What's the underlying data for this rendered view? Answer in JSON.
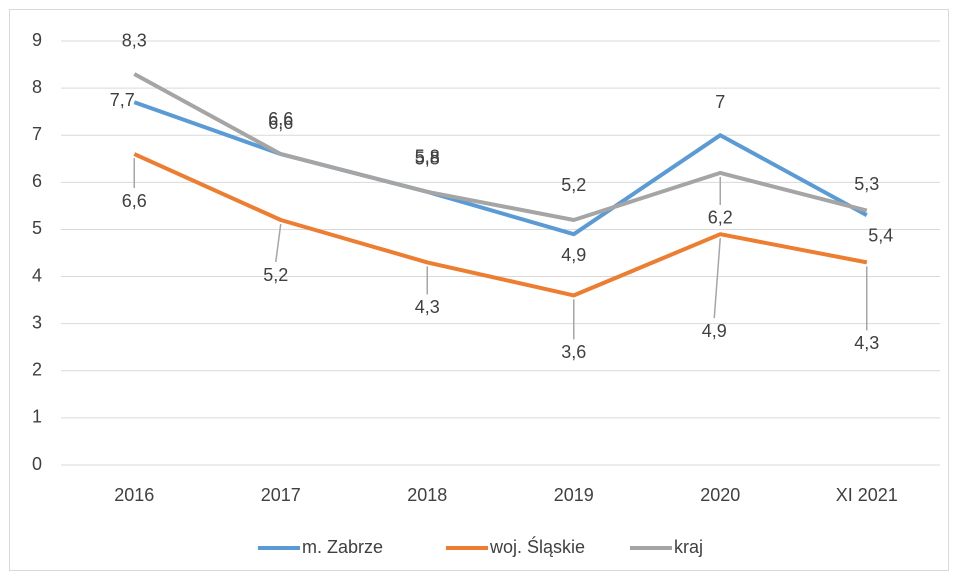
{
  "chart_data": {
    "type": "line",
    "categories": [
      "2016",
      "2017",
      "2018",
      "2019",
      "2020",
      "XI 2021"
    ],
    "series": [
      {
        "name": "m. Zabrze",
        "color": "#5b9bd5",
        "values": [
          7.7,
          6.6,
          5.8,
          4.9,
          7,
          5.3
        ],
        "value_labels": [
          "7,7",
          "6,6",
          "5,8",
          "4,9",
          "7",
          "5,3"
        ]
      },
      {
        "name": "woj. Śląskie",
        "color": "#ed7d31",
        "values": [
          6.6,
          5.2,
          4.3,
          3.6,
          4.9,
          4.3
        ],
        "value_labels": [
          "6,6",
          "5,2",
          "4,3",
          "3,6",
          "4,9",
          "4,3"
        ]
      },
      {
        "name": "kraj",
        "color": "#a5a5a5",
        "values": [
          8.3,
          6.6,
          5.8,
          5.2,
          6.2,
          5.4
        ],
        "value_labels": [
          "8,3",
          "6,6",
          "5,8",
          "5,2",
          "6,2",
          "5,4"
        ]
      }
    ],
    "ylim": [
      0,
      9
    ],
    "yticks": [
      0,
      1,
      2,
      3,
      4,
      5,
      6,
      7,
      8,
      9
    ],
    "grid": true,
    "legend": "bottom"
  }
}
